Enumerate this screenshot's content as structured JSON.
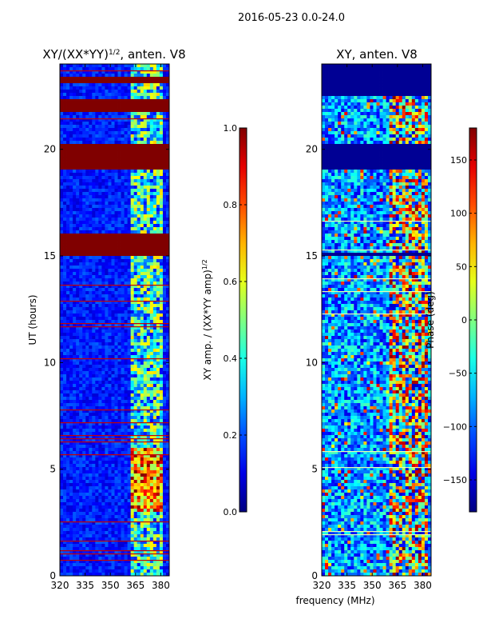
{
  "figure": {
    "suptitle": "2016-05-23 0.0-24.0",
    "xlabel": "frequency (MHz)"
  },
  "chart_data": [
    {
      "type": "heatmap",
      "title": "XY/(XX*YY)",
      "title_sup": "1/2",
      "title_suffix": ", anten. V8",
      "xlabel": "",
      "ylabel": "UT (hours)",
      "xlim": [
        320,
        385
      ],
      "ylim": [
        0,
        24
      ],
      "xticks": [
        320,
        335,
        350,
        365,
        380
      ],
      "yticks": [
        0,
        5,
        10,
        15,
        20
      ],
      "colormap": "jet",
      "colorbar": {
        "label": "XY amp. / (XX*YY amp)",
        "label_sup": "1/2",
        "vmin": 0.0,
        "vmax": 1.0,
        "ticks": [
          "0.0",
          "0.2",
          "0.4",
          "0.6",
          "0.8",
          "1.0"
        ],
        "tick_values": [
          0.0,
          0.2,
          0.4,
          0.6,
          0.8,
          1.0
        ]
      },
      "saturated_bands_ut_hours": [
        [
          19.1,
          20.3
        ],
        [
          15.0,
          16.0
        ],
        [
          21.8,
          22.3
        ],
        [
          23.1,
          23.4
        ]
      ]
    },
    {
      "type": "heatmap",
      "title": "XY, anten. V8",
      "xlabel": "frequency (MHz)",
      "ylabel": "",
      "xlim": [
        320,
        385
      ],
      "ylim": [
        0,
        24
      ],
      "xticks": [
        320,
        335,
        350,
        365,
        380
      ],
      "yticks": [
        0,
        5,
        10,
        15,
        20
      ],
      "colormap": "jet",
      "colorbar": {
        "label": "Phase (deg)",
        "vmin": -180,
        "vmax": 180,
        "ticks": [
          "150",
          "100",
          "50",
          "0",
          "−50",
          "−100",
          "−150"
        ],
        "tick_values": [
          150,
          100,
          50,
          0,
          -50,
          -100,
          -150
        ]
      },
      "flagged_bands_ut_hours": [
        [
          19.1,
          20.3
        ],
        [
          15.0,
          15.1
        ],
        [
          22.5,
          24.0
        ]
      ]
    }
  ]
}
